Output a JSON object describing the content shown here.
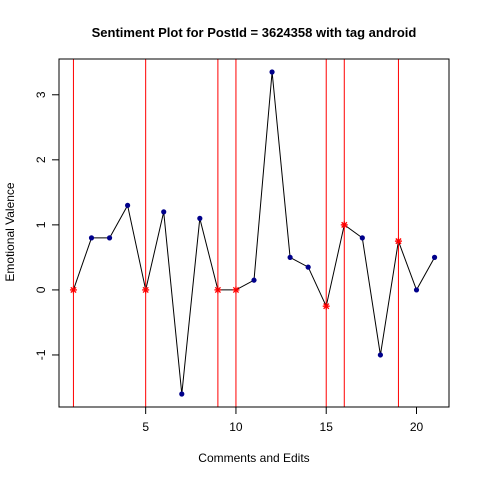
{
  "chart_data": {
    "type": "line",
    "title": "Sentiment Plot for PostId =  3624358  with tag  android",
    "xlabel": "Comments and Edits",
    "ylabel": "Emotional Valence",
    "xlim": [
      0.2,
      21.8
    ],
    "ylim": [
      -1.8,
      3.55
    ],
    "x_ticks": [
      5,
      10,
      15,
      20
    ],
    "y_ticks": [
      -1,
      0,
      1,
      2,
      3
    ],
    "series": [
      {
        "x": [
          1,
          2,
          3,
          4,
          5,
          6,
          7,
          8,
          9,
          10,
          11,
          12,
          13,
          14,
          15,
          16,
          17,
          18,
          19,
          20,
          21
        ],
        "values": [
          0,
          0.8,
          0.8,
          1.3,
          0,
          1.2,
          -1.6,
          1.1,
          0,
          0,
          0.15,
          3.35,
          0.5,
          0.35,
          -0.25,
          1.0,
          0.8,
          -1.0,
          0.75,
          0,
          0.5
        ]
      }
    ],
    "edit_points": [
      1,
      5,
      9,
      10,
      15,
      16,
      19
    ],
    "colors": {
      "line": "#000000",
      "point": "#00008b",
      "edit_line": "#ff0000",
      "edit_marker": "#ff0000"
    }
  }
}
